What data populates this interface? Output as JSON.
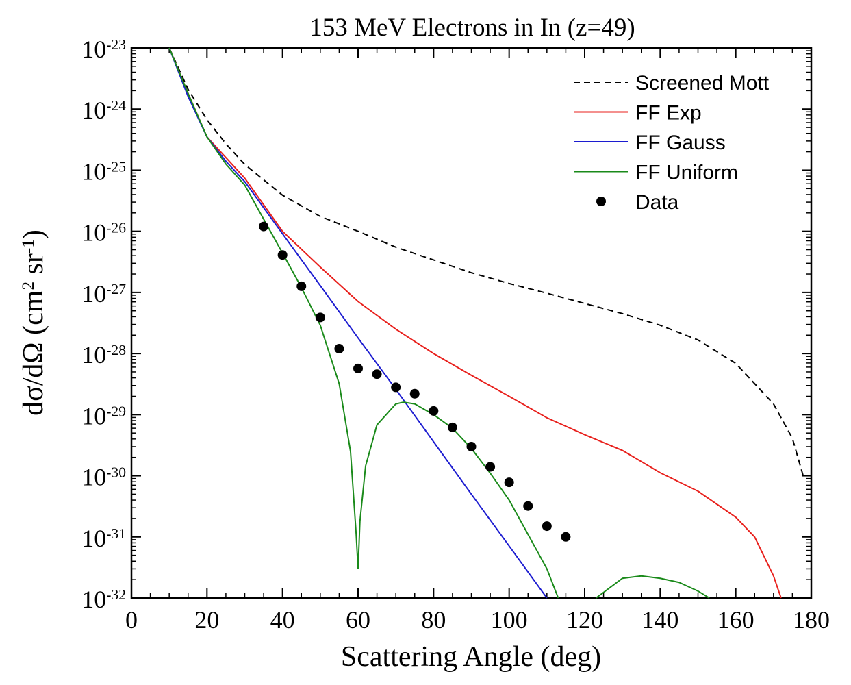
{
  "chart_data": {
    "type": "line",
    "title": "153 MeV Electrons in In (z=49)",
    "xlabel": "Scattering Angle (deg)",
    "ylabel": "dσ/dΩ (cm^2 sr^-1)",
    "xlim": [
      0,
      180
    ],
    "xticks": [
      0,
      20,
      40,
      60,
      80,
      100,
      120,
      140,
      160,
      180
    ],
    "ylim": [
      1e-32,
      1e-23
    ],
    "yscale": "log",
    "yticks": [
      {
        "value": 1e-32,
        "label": "10^-32"
      },
      {
        "value": 1e-31,
        "label": "10^-31"
      },
      {
        "value": 1e-30,
        "label": "10^-30"
      },
      {
        "value": 1e-29,
        "label": "10^-29"
      },
      {
        "value": 1e-28,
        "label": "10^-28"
      },
      {
        "value": 1e-27,
        "label": "10^-27"
      },
      {
        "value": 1e-26,
        "label": "10^-26"
      },
      {
        "value": 1e-25,
        "label": "10^-25"
      },
      {
        "value": 1e-24,
        "label": "10^-24"
      },
      {
        "value": 1e-23,
        "label": "10^-23"
      }
    ],
    "grid": false,
    "legend": "upper right",
    "series": [
      {
        "name": "Screened Mott",
        "color": "#000000",
        "dash": "dashed",
        "kind": "line",
        "x": [
          10,
          15,
          20,
          25,
          30,
          40,
          50,
          60,
          70,
          80,
          90,
          100,
          110,
          120,
          130,
          140,
          150,
          160,
          170,
          175,
          178
        ],
        "values": [
          1e-23,
          2.1e-24,
          6.7e-25,
          2.7e-25,
          1.24e-25,
          3.9e-26,
          1.75e-26,
          1e-26,
          5.5e-27,
          3.4e-27,
          2.1e-27,
          1.4e-27,
          9.7e-28,
          6.6e-28,
          4.5e-28,
          2.9e-28,
          1.67e-28,
          6.9e-29,
          1.5e-29,
          4.1e-30,
          9.3e-31
        ]
      },
      {
        "name": "FF Exp",
        "color": "#e8201c",
        "kind": "line",
        "x": [
          10,
          15,
          20,
          30,
          40,
          50,
          60,
          70,
          80,
          90,
          100,
          110,
          120,
          130,
          140,
          150,
          160,
          165,
          170,
          172
        ],
        "values": [
          1e-23,
          1.8e-24,
          3.5e-25,
          7.4e-26,
          1e-26,
          2.6e-27,
          7.1e-28,
          2.5e-28,
          1e-28,
          4.4e-29,
          2e-29,
          8.9e-30,
          4.7e-30,
          2.6e-30,
          1.12e-30,
          5.6e-31,
          2.1e-31,
          1e-31,
          2.3e-32,
          1e-32
        ]
      },
      {
        "name": "FF Gauss",
        "color": "#1c1cd0",
        "kind": "line",
        "x": [
          10,
          15,
          20,
          25,
          30,
          40,
          50,
          60,
          70,
          80,
          90,
          100,
          110
        ],
        "values": [
          1e-23,
          1.6e-24,
          3.5e-25,
          1.4e-25,
          6.5e-26,
          9.1e-27,
          1.29e-27,
          1.8e-28,
          2.6e-29,
          3.6e-30,
          5e-31,
          7.1e-32,
          1e-32
        ]
      },
      {
        "name": "FF Uniform",
        "color": "#1a8a1a",
        "kind": "line",
        "x": [
          10,
          15,
          20,
          25,
          30,
          40,
          45,
          50,
          55,
          58,
          59.5,
          60,
          60.5,
          62,
          65,
          70,
          72,
          75,
          80,
          85,
          90,
          95,
          100,
          105,
          110,
          113,
          118,
          123,
          130,
          135,
          140,
          145,
          150,
          153
        ],
        "values": [
          1e-23,
          1.8e-24,
          3.5e-25,
          1.26e-25,
          5.7e-26,
          4.4e-27,
          1.2e-27,
          2.9e-28,
          3.2e-29,
          2.5e-30,
          1.1e-31,
          3e-32,
          1.8e-31,
          1.45e-30,
          6.8e-30,
          1.5e-29,
          1.6e-29,
          1.5e-29,
          1e-29,
          6e-30,
          2.8e-30,
          1.1e-30,
          4e-31,
          1.1e-31,
          3e-32,
          1e-32,
          null,
          1e-32,
          2.1e-32,
          2.3e-32,
          2.1e-32,
          1.8e-32,
          1.3e-32,
          1e-32
        ]
      },
      {
        "name": "Data",
        "color": "#000000",
        "kind": "scatter",
        "x": [
          35,
          40,
          45,
          50,
          55,
          60,
          65,
          70,
          75,
          80,
          85,
          90,
          95,
          100,
          105,
          110,
          115
        ],
        "values": [
          1.2e-26,
          4.1e-27,
          1.26e-27,
          3.9e-28,
          1.2e-28,
          5.7e-29,
          4.6e-29,
          2.8e-29,
          2.2e-29,
          1.15e-29,
          6.2e-30,
          3e-30,
          1.4e-30,
          7.8e-31,
          3.2e-31,
          1.5e-31,
          1e-31
        ]
      }
    ]
  }
}
